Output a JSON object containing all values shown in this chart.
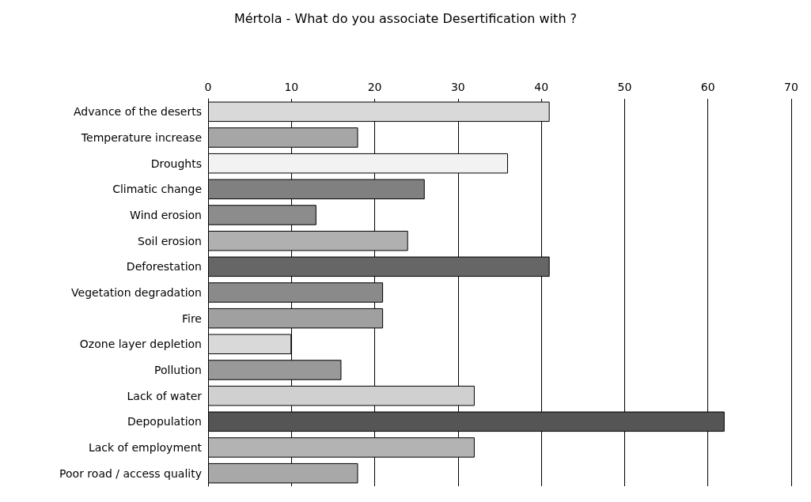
{
  "chart_data": {
    "type": "bar",
    "orientation": "horizontal",
    "title": "Mértola - What do you associate Desertification with ?",
    "categories": [
      "Advance of the deserts",
      "Temperature increase",
      "Droughts",
      "Climatic change",
      "Wind erosion",
      "Soil erosion",
      "Deforestation",
      "Vegetation degradation",
      "Fire",
      "Ozone layer depletion",
      "Pollution",
      "Lack of water",
      "Depopulation",
      "Lack of employment",
      "Poor road / access quality"
    ],
    "values": [
      41,
      18,
      36,
      26,
      13,
      24,
      41,
      21,
      21,
      10,
      16,
      32,
      62,
      32,
      18
    ],
    "colors": [
      "#d9d9d9",
      "#a6a6a6",
      "#f2f2f2",
      "#808080",
      "#8c8c8c",
      "#b0b0b0",
      "#666666",
      "#8a8a8a",
      "#a0a0a0",
      "#d9d9d9",
      "#999999",
      "#d0d0d0",
      "#555555",
      "#b3b3b3",
      "#a8a8a8"
    ],
    "xlim": [
      0,
      70
    ],
    "xticks": [
      0,
      10,
      20,
      30,
      40,
      50,
      60,
      70
    ],
    "grid": "x"
  }
}
